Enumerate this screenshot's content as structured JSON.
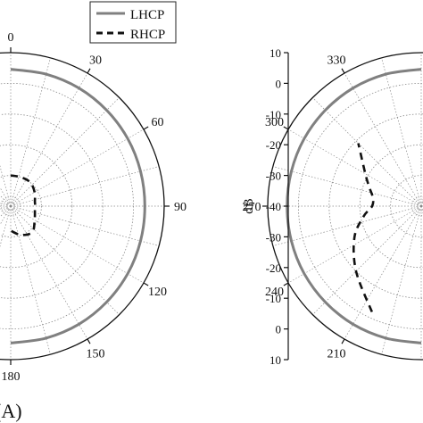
{
  "chart_data": [
    {
      "type": "line",
      "coordinate_system": "polar",
      "panel_label": "(A)",
      "angle_ticks": [
        "0",
        "30",
        "60",
        "90",
        "120",
        "150",
        "180"
      ],
      "angle_unit": "degrees",
      "radial_unit": "dB",
      "rlim": [
        -40,
        10
      ],
      "grid": true,
      "legend": {
        "placement": "top-center",
        "entries": [
          "LHCP",
          "RHCP"
        ]
      },
      "series": [
        {
          "name": "LHCP",
          "style": "solid",
          "color": "#808080",
          "x": [
            0,
            15,
            30,
            45,
            60,
            75,
            90,
            105,
            120,
            135,
            150,
            165,
            180
          ],
          "y": [
            4.6,
            4.5,
            4.4,
            4.2,
            4.0,
            3.8,
            3.7,
            3.8,
            4.0,
            4.2,
            4.4,
            4.5,
            4.6
          ]
        },
        {
          "name": "RHCP",
          "style": "dashed",
          "color": "#111111",
          "x": [
            0,
            20,
            40,
            60,
            80,
            90,
            100,
            120,
            140,
            160,
            180
          ],
          "y": [
            -30,
            -30,
            -30,
            -31,
            -32,
            -32,
            -32,
            -31,
            -29,
            -30,
            -32
          ]
        }
      ]
    },
    {
      "type": "line",
      "coordinate_system": "polar",
      "angle_ticks": [
        "210",
        "240",
        "270",
        "300",
        "330"
      ],
      "angle_unit": "degrees",
      "radial_axis_label": "dB",
      "radial_ticks": [
        "10",
        "0",
        "-10",
        "-20",
        "-30",
        "-40",
        "-30",
        "-20",
        "-10",
        "0",
        "10"
      ],
      "rlim": [
        -40,
        10
      ],
      "grid": true,
      "series": [
        {
          "name": "LHCP",
          "style": "solid",
          "color": "#808080",
          "x": [
            180,
            195,
            210,
            225,
            240,
            255,
            270,
            285,
            300,
            315,
            330,
            345,
            360
          ],
          "y": [
            4.6,
            4.5,
            4.4,
            4.2,
            4.0,
            3.8,
            3.7,
            3.8,
            4.0,
            4.2,
            4.4,
            4.5,
            4.6
          ]
        },
        {
          "name": "RHCP",
          "style": "dashed",
          "color": "#111111",
          "x": [
            205,
            225,
            245,
            260,
            270,
            280,
            290,
            300,
            315
          ],
          "y": [
            -2,
            -10,
            -16,
            -21,
            -24,
            -24,
            -22,
            -19,
            -11
          ]
        }
      ]
    }
  ]
}
